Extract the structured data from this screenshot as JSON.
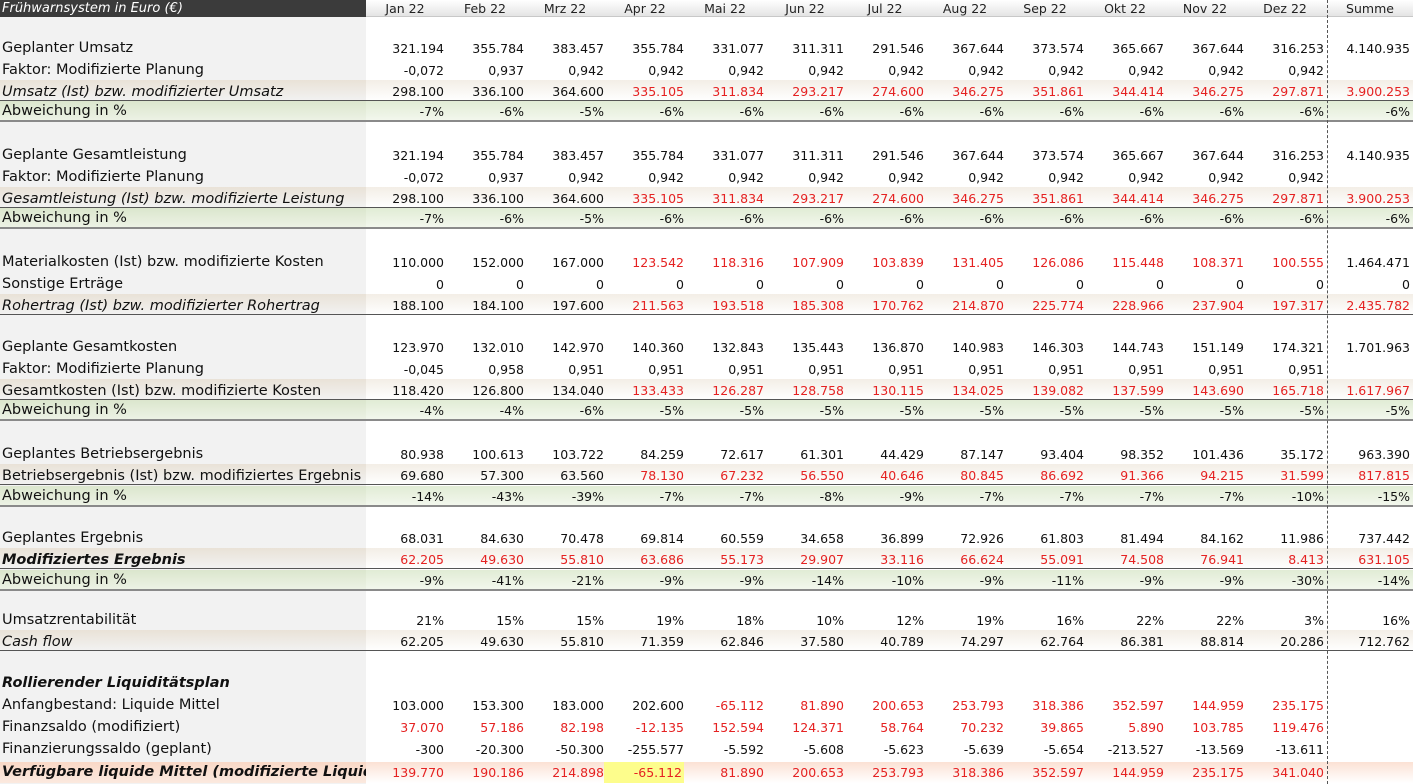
{
  "title": "Frühwarnsystem in Euro (€)",
  "columns": [
    "Jan 22",
    "Feb 22",
    "Mrz 22",
    "Apr 22",
    "Mai 22",
    "Jun 22",
    "Jul 22",
    "Aug 22",
    "Sep 22",
    "Okt 22",
    "Nov 22",
    "Dez 22",
    "Summe"
  ],
  "colors": {
    "red": "#e52222",
    "band_green": "#e1ecd5",
    "header_dark": "#3b3b3b",
    "highlight_yellow": "#fdfd8c"
  },
  "rows": [
    {
      "label": "Geplanter Umsatz",
      "values": [
        "321.194",
        "355.784",
        "383.457",
        "355.784",
        "331.077",
        "311.311",
        "291.546",
        "367.644",
        "373.574",
        "365.667",
        "367.644",
        "316.253",
        "4.140.935"
      ]
    },
    {
      "label": "Faktor: Modifizierte Planung",
      "values": [
        "-0,072",
        "0,937",
        "0,942",
        "0,942",
        "0,942",
        "0,942",
        "0,942",
        "0,942",
        "0,942",
        "0,942",
        "0,942",
        "0,942",
        ""
      ]
    },
    {
      "label": "Umsatz (Ist) bzw. modifizierter Umsatz",
      "values": [
        "298.100",
        "336.100",
        "364.600",
        "335.105",
        "311.834",
        "293.217",
        "274.600",
        "346.275",
        "351.861",
        "344.414",
        "346.275",
        "297.871",
        "3.900.253"
      ]
    },
    {
      "label": "Abweichung in %",
      "values": [
        "-7%",
        "-6%",
        "-5%",
        "-6%",
        "-6%",
        "-6%",
        "-6%",
        "-6%",
        "-6%",
        "-6%",
        "-6%",
        "-6%",
        "-6%"
      ]
    },
    {
      "label": "Geplante Gesamtleistung",
      "values": [
        "321.194",
        "355.784",
        "383.457",
        "355.784",
        "331.077",
        "311.311",
        "291.546",
        "367.644",
        "373.574",
        "365.667",
        "367.644",
        "316.253",
        "4.140.935"
      ]
    },
    {
      "label": "Faktor: Modifizierte Planung",
      "values": [
        "-0,072",
        "0,937",
        "0,942",
        "0,942",
        "0,942",
        "0,942",
        "0,942",
        "0,942",
        "0,942",
        "0,942",
        "0,942",
        "0,942",
        ""
      ]
    },
    {
      "label": "Gesamtleistung (Ist) bzw. modifizierte Leistung",
      "values": [
        "298.100",
        "336.100",
        "364.600",
        "335.105",
        "311.834",
        "293.217",
        "274.600",
        "346.275",
        "351.861",
        "344.414",
        "346.275",
        "297.871",
        "3.900.253"
      ]
    },
    {
      "label": "Abweichung in %",
      "values": [
        "-7%",
        "-6%",
        "-5%",
        "-6%",
        "-6%",
        "-6%",
        "-6%",
        "-6%",
        "-6%",
        "-6%",
        "-6%",
        "-6%",
        "-6%"
      ]
    },
    {
      "label": "Materialkosten (Ist) bzw. modifizierte Kosten",
      "values": [
        "110.000",
        "152.000",
        "167.000",
        "123.542",
        "118.316",
        "107.909",
        "103.839",
        "131.405",
        "126.086",
        "115.448",
        "108.371",
        "100.555",
        "1.464.471"
      ]
    },
    {
      "label": "Sonstige Erträge",
      "values": [
        "0",
        "0",
        "0",
        "0",
        "0",
        "0",
        "0",
        "0",
        "0",
        "0",
        "0",
        "0",
        "0"
      ]
    },
    {
      "label": "Rohertrag (Ist) bzw. modifizierter Rohertrag",
      "values": [
        "188.100",
        "184.100",
        "197.600",
        "211.563",
        "193.518",
        "185.308",
        "170.762",
        "214.870",
        "225.774",
        "228.966",
        "237.904",
        "197.317",
        "2.435.782"
      ]
    },
    {
      "label": "Geplante Gesamtkosten",
      "values": [
        "123.970",
        "132.010",
        "142.970",
        "140.360",
        "132.843",
        "135.443",
        "136.870",
        "140.983",
        "146.303",
        "144.743",
        "151.149",
        "174.321",
        "1.701.963"
      ]
    },
    {
      "label": "Faktor: Modifizierte Planung",
      "values": [
        "-0,045",
        "0,958",
        "0,951",
        "0,951",
        "0,951",
        "0,951",
        "0,951",
        "0,951",
        "0,951",
        "0,951",
        "0,951",
        "0,951",
        ""
      ]
    },
    {
      "label": "Gesamtkosten (Ist) bzw. modifizierte Kosten",
      "values": [
        "118.420",
        "126.800",
        "134.040",
        "133.433",
        "126.287",
        "128.758",
        "130.115",
        "134.025",
        "139.082",
        "137.599",
        "143.690",
        "165.718",
        "1.617.967"
      ]
    },
    {
      "label": "Abweichung in %",
      "values": [
        "-4%",
        "-4%",
        "-6%",
        "-5%",
        "-5%",
        "-5%",
        "-5%",
        "-5%",
        "-5%",
        "-5%",
        "-5%",
        "-5%",
        "-5%"
      ]
    },
    {
      "label": "Geplantes Betriebsergebnis",
      "values": [
        "80.938",
        "100.613",
        "103.722",
        "84.259",
        "72.617",
        "61.301",
        "44.429",
        "87.147",
        "93.404",
        "98.352",
        "101.436",
        "35.172",
        "963.390"
      ]
    },
    {
      "label": "Betriebsergebnis (Ist) bzw. modifiziertes Ergebnis",
      "values": [
        "69.680",
        "57.300",
        "63.560",
        "78.130",
        "67.232",
        "56.550",
        "40.646",
        "80.845",
        "86.692",
        "91.366",
        "94.215",
        "31.599",
        "817.815"
      ]
    },
    {
      "label": "Abweichung in %",
      "values": [
        "-14%",
        "-43%",
        "-39%",
        "-7%",
        "-7%",
        "-8%",
        "-9%",
        "-7%",
        "-7%",
        "-7%",
        "-7%",
        "-10%",
        "-15%"
      ]
    },
    {
      "label": "Geplantes Ergebnis",
      "values": [
        "68.031",
        "84.630",
        "70.478",
        "69.814",
        "60.559",
        "34.658",
        "36.899",
        "72.926",
        "61.803",
        "81.494",
        "84.162",
        "11.986",
        "737.442"
      ]
    },
    {
      "label": "Modifiziertes Ergebnis",
      "values": [
        "62.205",
        "49.630",
        "55.810",
        "63.686",
        "55.173",
        "29.907",
        "33.116",
        "66.624",
        "55.091",
        "74.508",
        "76.941",
        "8.413",
        "631.105"
      ]
    },
    {
      "label": "Abweichung in %",
      "values": [
        "-9%",
        "-41%",
        "-21%",
        "-9%",
        "-9%",
        "-14%",
        "-10%",
        "-9%",
        "-11%",
        "-9%",
        "-9%",
        "-30%",
        "-14%"
      ]
    },
    {
      "label": "Umsatzrentabilität",
      "values": [
        "21%",
        "15%",
        "15%",
        "19%",
        "18%",
        "10%",
        "12%",
        "19%",
        "16%",
        "22%",
        "22%",
        "3%",
        "16%"
      ]
    },
    {
      "label": "Cash flow",
      "values": [
        "62.205",
        "49.630",
        "55.810",
        "71.359",
        "62.846",
        "37.580",
        "40.789",
        "74.297",
        "62.764",
        "86.381",
        "88.814",
        "20.286",
        "712.762"
      ]
    },
    {
      "label": "Rollierender Liquiditätsplan",
      "values": []
    },
    {
      "label": "Anfangbestand: Liquide Mittel",
      "values": [
        "103.000",
        "153.300",
        "183.000",
        "202.600",
        "-65.112",
        "81.890",
        "200.653",
        "253.793",
        "318.386",
        "352.597",
        "144.959",
        "235.175",
        ""
      ]
    },
    {
      "label": "Finanzsaldo (modifiziert)",
      "values": [
        "37.070",
        "57.186",
        "82.198",
        "-12.135",
        "152.594",
        "124.371",
        "58.764",
        "70.232",
        "39.865",
        "5.890",
        "103.785",
        "119.476",
        ""
      ]
    },
    {
      "label": "Finanzierungssaldo (geplant)",
      "values": [
        "-300",
        "-20.300",
        "-50.300",
        "-255.577",
        "-5.592",
        "-5.608",
        "-5.623",
        "-5.639",
        "-5.654",
        "-213.527",
        "-13.569",
        "-13.611",
        ""
      ]
    },
    {
      "label": "Verfügbare liquide Mittel (modifizierte Liquidität)",
      "values": [
        "139.770",
        "190.186",
        "214.898",
        "-65.112",
        "81.890",
        "200.653",
        "253.793",
        "318.386",
        "352.597",
        "144.959",
        "235.175",
        "341.040",
        ""
      ]
    }
  ]
}
